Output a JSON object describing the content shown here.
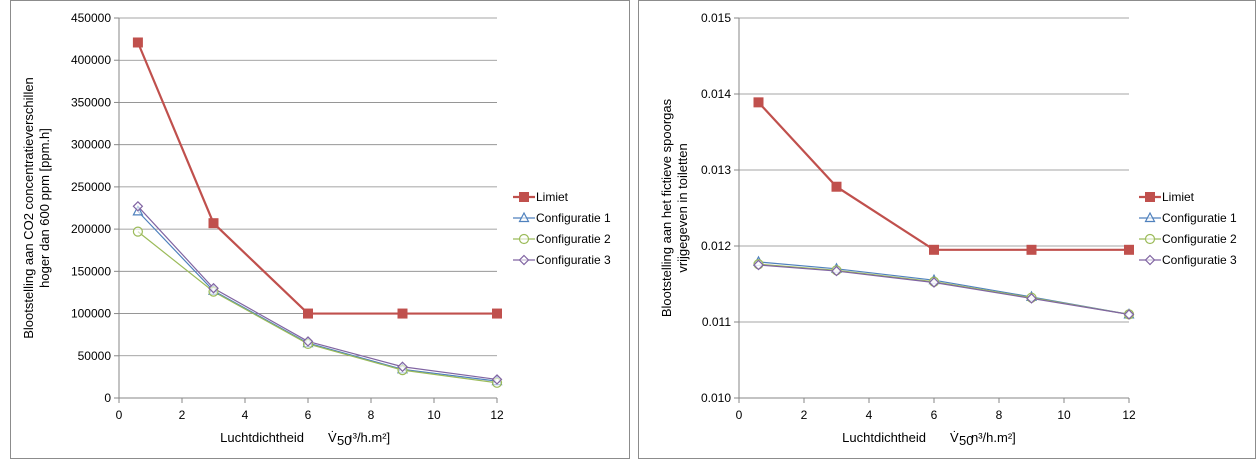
{
  "chart_data": [
    {
      "type": "line",
      "title": "",
      "xlabel": "Luchtdichtheid",
      "xlabel_symbol": "V̇",
      "xlabel_sub": "50",
      "xlabel_unit": "ı³/h.m²]",
      "ylabel_lines": [
        "Blootstelling aan CO2 concentratieverschillen",
        "hoger dan 600 ppm [ppm.h]"
      ],
      "xlim": [
        0,
        12
      ],
      "ylim": [
        0,
        450000
      ],
      "xticks": [
        "0",
        "2",
        "4",
        "6",
        "8",
        "10",
        "12"
      ],
      "yticks": [
        "0",
        "50000",
        "100000",
        "150000",
        "200000",
        "250000",
        "300000",
        "350000",
        "400000",
        "450000"
      ],
      "x": [
        0.6,
        3,
        6,
        9,
        12
      ],
      "grid": true,
      "legend_position": "right",
      "series": [
        {
          "name": "Limiet",
          "color": "#c0504d",
          "marker": "square",
          "values": [
            421000,
            207000,
            100000,
            100000,
            100000
          ]
        },
        {
          "name": "Configuratie 1",
          "color": "#4f81bd",
          "marker": "triangle",
          "values": [
            221000,
            127000,
            65000,
            34000,
            20000
          ]
        },
        {
          "name": "Configuratie 2",
          "color": "#9bbb59",
          "marker": "circle",
          "values": [
            197000,
            126000,
            64000,
            33000,
            18000
          ]
        },
        {
          "name": "Configuratie 3",
          "color": "#8064a2",
          "marker": "diamond",
          "values": [
            227000,
            130000,
            67000,
            37000,
            22000
          ]
        }
      ]
    },
    {
      "type": "line",
      "title": "",
      "xlabel": "Luchtdichtheid",
      "xlabel_symbol": "V̇",
      "xlabel_sub": "50",
      "xlabel_unit": "n³/h.m²]",
      "ylabel_lines": [
        "Blootstelling aan het fictieve spoorgas",
        "vrijgegeven in toiletten"
      ],
      "xlim": [
        0,
        12
      ],
      "ylim": [
        0.01,
        0.015
      ],
      "xticks": [
        "0",
        "2",
        "4",
        "6",
        "8",
        "10",
        "12"
      ],
      "yticks": [
        "0.010",
        "0.011",
        "0.012",
        "0.013",
        "0.014",
        "0.015"
      ],
      "x": [
        0.6,
        3,
        6,
        9,
        12
      ],
      "grid": true,
      "legend_position": "right",
      "series": [
        {
          "name": "Limiet",
          "color": "#c0504d",
          "marker": "square",
          "values": [
            0.01389,
            0.01278,
            0.01195,
            0.01195,
            0.01195
          ]
        },
        {
          "name": "Configuratie 1",
          "color": "#4f81bd",
          "marker": "triangle",
          "values": [
            0.01179,
            0.0117,
            0.01155,
            0.01133,
            0.0111
          ]
        },
        {
          "name": "Configuratie 2",
          "color": "#9bbb59",
          "marker": "circle",
          "values": [
            0.01176,
            0.01168,
            0.01153,
            0.01132,
            0.0111
          ]
        },
        {
          "name": "Configuratie 3",
          "color": "#8064a2",
          "marker": "diamond",
          "values": [
            0.01175,
            0.01167,
            0.01152,
            0.01131,
            0.0111
          ]
        }
      ]
    }
  ]
}
